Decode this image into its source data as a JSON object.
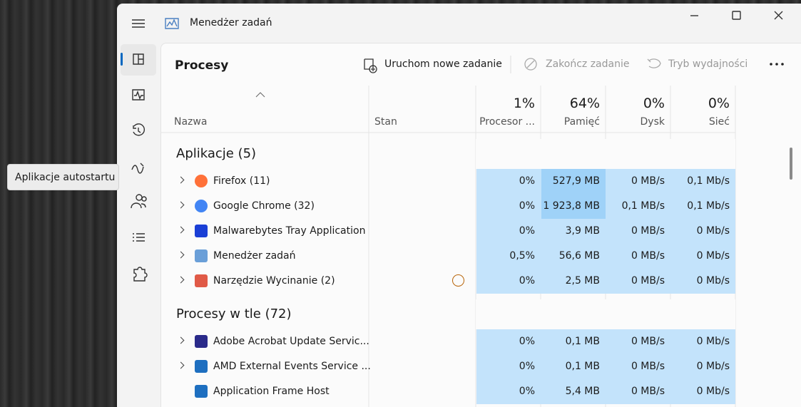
{
  "window": {
    "title": "Menedżer zadań"
  },
  "tooltip": "Aplikacje autostartu",
  "toolbar": {
    "title": "Procesy",
    "actions": [
      "Uruchom nowe zadanie",
      "Zakończ zadanie",
      "Tryb wydajności"
    ]
  },
  "columns": [
    {
      "label": "Nazwa"
    },
    {
      "label": "Stan"
    },
    {
      "usage": "1%",
      "label": "Procesor ..."
    },
    {
      "usage": "64%",
      "label": "Pamięć"
    },
    {
      "usage": "0%",
      "label": "Dysk"
    },
    {
      "usage": "0%",
      "label": "Sieć"
    }
  ],
  "groups": [
    {
      "title": "Aplikacje (5)",
      "rows": [
        {
          "name": "Firefox (11)",
          "expandable": true,
          "suspended": false,
          "cpu": "0%",
          "memory": "527,9 MB",
          "memory_high": true,
          "disk": "0 MB/s",
          "network": "0,1 Mb/s"
        },
        {
          "name": "Google Chrome (32)",
          "expandable": true,
          "suspended": false,
          "cpu": "0%",
          "memory": "1 923,8 MB",
          "memory_high": true,
          "disk": "0,1 MB/s",
          "network": "0,1 Mb/s"
        },
        {
          "name": "Malwarebytes Tray Application",
          "expandable": true,
          "suspended": false,
          "cpu": "0%",
          "memory": "3,9 MB",
          "memory_high": false,
          "disk": "0 MB/s",
          "network": "0 Mb/s"
        },
        {
          "name": "Menedżer zadań",
          "expandable": true,
          "suspended": false,
          "cpu": "0,5%",
          "memory": "56,6 MB",
          "memory_high": false,
          "disk": "0 MB/s",
          "network": "0 Mb/s"
        },
        {
          "name": "Narzędzie Wycinanie (2)",
          "expandable": true,
          "suspended": true,
          "cpu": "0%",
          "memory": "2,5 MB",
          "memory_high": false,
          "disk": "0 MB/s",
          "network": "0 Mb/s"
        }
      ]
    },
    {
      "title": "Procesy w tle (72)",
      "rows": [
        {
          "name": "Adobe Acrobat Update Servic...",
          "expandable": true,
          "suspended": false,
          "cpu": "0%",
          "memory": "0,1 MB",
          "memory_high": false,
          "disk": "0 MB/s",
          "network": "0 Mb/s"
        },
        {
          "name": "AMD External Events Service ...",
          "expandable": true,
          "suspended": false,
          "cpu": "0%",
          "memory": "0,1 MB",
          "memory_high": false,
          "disk": "0 MB/s",
          "network": "0 Mb/s"
        },
        {
          "name": "Application Frame Host",
          "expandable": false,
          "suspended": false,
          "cpu": "0%",
          "memory": "5,4 MB",
          "memory_high": false,
          "disk": "0 MB/s",
          "network": "0 Mb/s"
        }
      ]
    }
  ]
}
